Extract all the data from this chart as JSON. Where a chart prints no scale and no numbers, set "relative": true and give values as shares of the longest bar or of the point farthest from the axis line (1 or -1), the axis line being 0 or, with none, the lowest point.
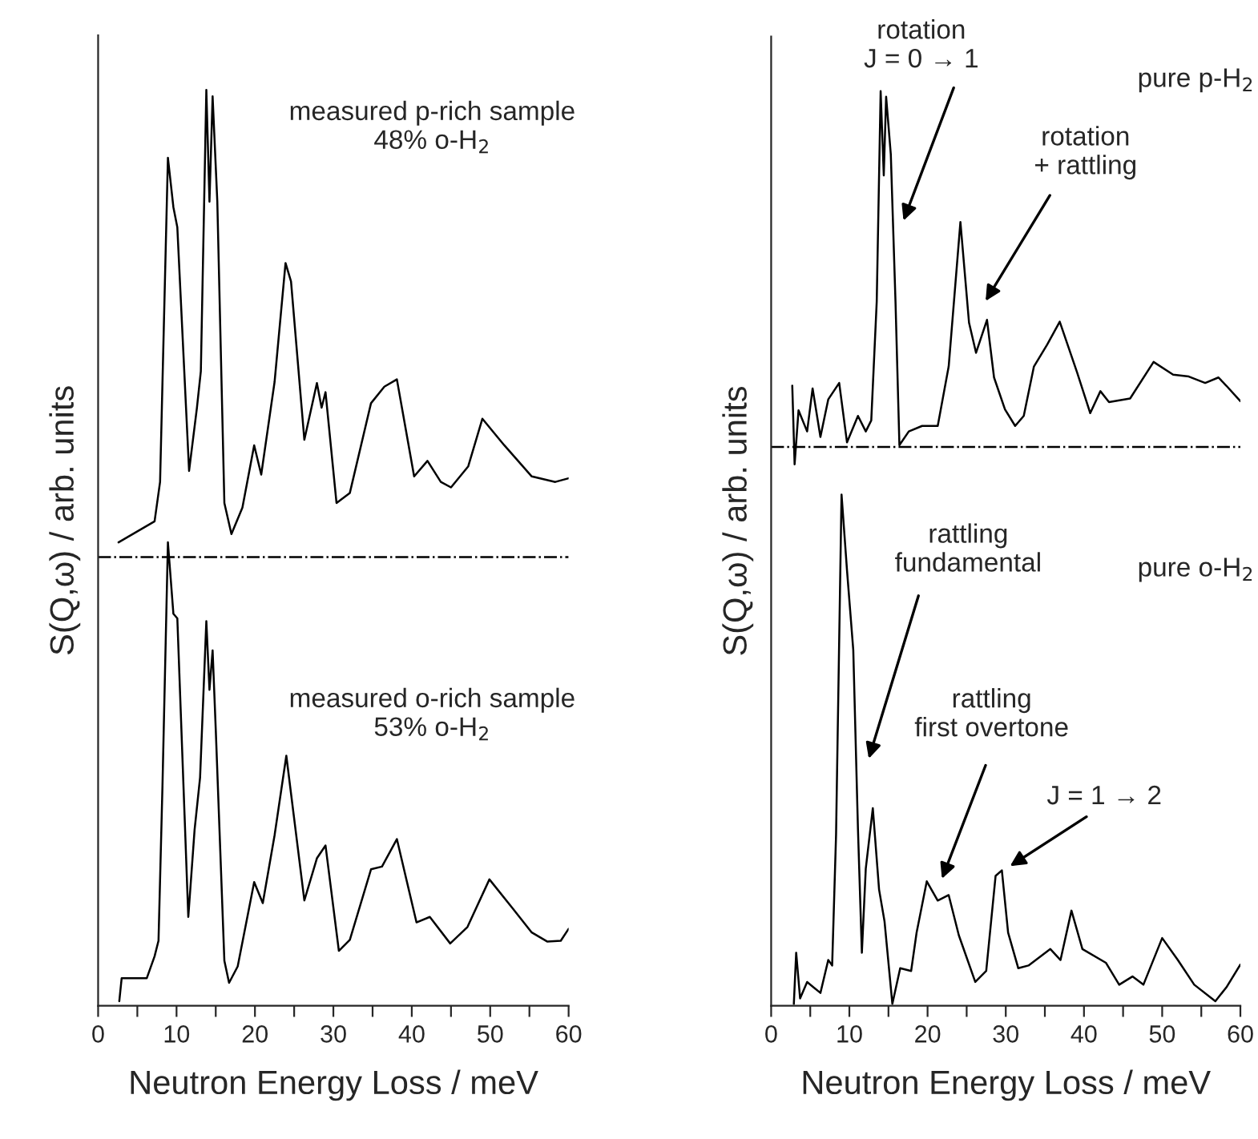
{
  "chart_data": [
    {
      "type": "line",
      "relative": true,
      "xlabel": "Neutron Energy Loss / meV",
      "ylabel": "S(Q,ω) / arb. units",
      "xlim": [
        0,
        60
      ],
      "xticks": [
        0,
        {
          "value": 5,
          "label": null
        },
        10,
        {
          "value": 15,
          "label": null
        },
        20,
        {
          "value": 25,
          "label": null
        },
        30,
        {
          "value": 35,
          "label": null
        },
        40,
        {
          "value": 45,
          "label": null
        },
        50,
        {
          "value": 55,
          "label": null
        },
        60
      ],
      "grid": false,
      "legend": false,
      "line_style": "solid",
      "marker": "none",
      "series": [
        {
          "color": "#000000",
          "x": [
            2.6,
            7.2,
            7.9,
            8.9,
            9.6,
            10.1,
            11.6,
            12.6,
            13.1,
            13.8,
            14.2,
            14.6,
            15.2,
            16.1,
            17.0,
            18.4,
            19.9,
            20.8,
            22.5,
            23.9,
            24.6,
            26.3,
            27.9,
            28.5,
            29.0,
            30.4,
            32.1,
            34.8,
            36.5,
            38.1,
            40.3,
            42.0,
            43.7,
            45.0,
            47.2,
            49.0,
            51.8,
            55.3,
            58.3,
            60.0
          ],
          "values": [
            0.506,
            0.529,
            0.572,
            0.926,
            0.872,
            0.85,
            0.584,
            0.653,
            0.693,
            1.0,
            0.878,
            0.993,
            0.878,
            0.549,
            0.515,
            0.544,
            0.612,
            0.58,
            0.681,
            0.811,
            0.791,
            0.618,
            0.68,
            0.653,
            0.67,
            0.549,
            0.56,
            0.658,
            0.676,
            0.684,
            0.578,
            0.595,
            0.572,
            0.566,
            0.589,
            0.641,
            0.612,
            0.578,
            0.572,
            0.576
          ]
        },
        {
          "color": "#000000",
          "x": [
            2.7,
            3.0,
            6.2,
            7.2,
            7.7,
            8.2,
            8.9,
            9.6,
            10.1,
            11.5,
            12.3,
            13.0,
            13.8,
            14.2,
            14.6,
            15.0,
            16.1,
            16.7,
            17.8,
            19.9,
            21.0,
            22.5,
            24.0,
            26.3,
            27.9,
            29.0,
            30.7,
            32.1,
            34.8,
            36.2,
            38.1,
            40.6,
            42.3,
            44.9,
            47.1,
            49.9,
            52.9,
            55.3,
            57.3,
            59.0,
            60.0
          ],
          "values": [
            0.005,
            0.03,
            0.03,
            0.054,
            0.071,
            0.238,
            0.506,
            0.428,
            0.423,
            0.097,
            0.192,
            0.249,
            0.42,
            0.345,
            0.388,
            0.302,
            0.049,
            0.025,
            0.043,
            0.135,
            0.112,
            0.186,
            0.273,
            0.115,
            0.161,
            0.175,
            0.06,
            0.072,
            0.149,
            0.152,
            0.182,
            0.091,
            0.097,
            0.068,
            0.086,
            0.138,
            0.106,
            0.08,
            0.07,
            0.071,
            0.084
          ]
        }
      ],
      "ref_lines": [
        {
          "axis": "y",
          "value": 0.49,
          "color": "#000000",
          "line_style": "dashdot"
        }
      ],
      "annotations": [
        "measured p-rich sample\n48% o-H$_{2}$",
        "measured o-rich sample\n53% o-H$_{2}$"
      ]
    },
    {
      "type": "line",
      "relative": true,
      "xlabel": "Neutron Energy Loss / meV",
      "ylabel": "S(Q,ω) / arb. units",
      "xlim": [
        0,
        60
      ],
      "xticks": [
        0,
        {
          "value": 5,
          "label": null
        },
        10,
        {
          "value": 15,
          "label": null
        },
        20,
        {
          "value": 25,
          "label": null
        },
        30,
        {
          "value": 35,
          "label": null
        },
        40,
        {
          "value": 45,
          "label": null
        },
        50,
        {
          "value": 55,
          "label": null
        },
        60
      ],
      "grid": false,
      "legend": false,
      "line_style": "solid",
      "marker": "none",
      "series": [
        {
          "color": "#000000",
          "x": [
            2.7,
            3.0,
            3.5,
            4.6,
            5.3,
            6.3,
            7.3,
            8.7,
            9.7,
            11.1,
            12.1,
            12.8,
            13.5,
            14.0,
            14.4,
            14.7,
            15.3,
            15.9,
            16.4,
            17.6,
            19.3,
            21.3,
            22.7,
            24.2,
            25.3,
            26.2,
            27.6,
            28.5,
            29.9,
            31.2,
            32.3,
            33.6,
            35.3,
            36.9,
            39.1,
            40.8,
            42.1,
            43.2,
            45.9,
            48.9,
            51.4,
            53.4,
            55.5,
            57.2,
            58.2,
            60.0
          ],
          "values": [
            0.678,
            0.592,
            0.651,
            0.628,
            0.675,
            0.622,
            0.663,
            0.681,
            0.616,
            0.645,
            0.628,
            0.64,
            0.77,
            1.0,
            0.908,
            0.994,
            0.931,
            0.77,
            0.613,
            0.628,
            0.634,
            0.634,
            0.699,
            0.857,
            0.747,
            0.714,
            0.75,
            0.687,
            0.652,
            0.634,
            0.645,
            0.699,
            0.723,
            0.748,
            0.693,
            0.648,
            0.672,
            0.66,
            0.664,
            0.704,
            0.69,
            0.688,
            0.681,
            0.687,
            0.678,
            0.661
          ]
        },
        {
          "color": "#000000",
          "x": [
            2.9,
            3.2,
            3.7,
            4.6,
            6.3,
            7.3,
            7.8,
            8.3,
            9.0,
            9.7,
            10.5,
            11.1,
            11.6,
            12.1,
            13.0,
            13.8,
            14.5,
            15.5,
            16.5,
            17.9,
            18.6,
            19.9,
            21.3,
            22.7,
            24.0,
            26.1,
            27.5,
            28.7,
            29.5,
            30.3,
            31.6,
            32.9,
            35.7,
            37.0,
            38.4,
            39.8,
            42.8,
            44.5,
            46.2,
            47.6,
            50.0,
            52.0,
            54.1,
            56.8,
            58.2,
            60.0
          ],
          "values": [
            0.002,
            0.058,
            0.008,
            0.026,
            0.014,
            0.05,
            0.044,
            0.187,
            0.559,
            0.476,
            0.389,
            0.193,
            0.058,
            0.15,
            0.216,
            0.127,
            0.092,
            0.002,
            0.041,
            0.038,
            0.08,
            0.136,
            0.115,
            0.121,
            0.077,
            0.026,
            0.038,
            0.142,
            0.148,
            0.08,
            0.041,
            0.044,
            0.062,
            0.05,
            0.104,
            0.062,
            0.047,
            0.023,
            0.032,
            0.023,
            0.074,
            0.05,
            0.023,
            0.005,
            0.02,
            0.045
          ]
        }
      ],
      "ref_lines": [
        {
          "axis": "y",
          "value": 0.611,
          "color": "#000000",
          "line_style": "dashdot"
        }
      ],
      "annotations": [
        "rotation\nJ = 0 → 1",
        "rotation\n+ rattling",
        "pure p-H$_{2}$",
        "rattling\nfundamental",
        "rattling\nfirst overtone",
        "J = 1 → 2",
        "pure o-H$_{2}$"
      ]
    }
  ]
}
